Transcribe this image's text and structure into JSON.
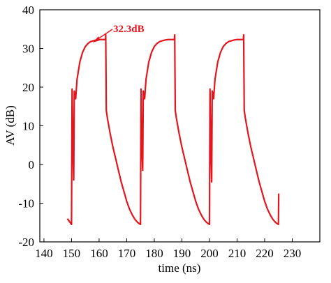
{
  "chart_data": {
    "type": "line",
    "xlabel": "time (ns)",
    "ylabel": "AV (dB)",
    "annotation": "32.3dB",
    "xlim": [
      138.5,
      240
    ],
    "xticks": [
      140,
      150,
      160,
      170,
      180,
      190,
      200,
      210,
      220,
      230
    ],
    "ylim": [
      -20,
      40
    ],
    "yticks": [
      -20,
      -10,
      0,
      10,
      20,
      30,
      40
    ],
    "series": [
      {
        "color": "#e3161d",
        "x": [
          148.5,
          150,
          150.2,
          150.5,
          150.8,
          151,
          151.5,
          152,
          153,
          154,
          155,
          156,
          157,
          158,
          159,
          160,
          162.3,
          162.4,
          162.6,
          163,
          164,
          165,
          166,
          167,
          168,
          169,
          170,
          171,
          172,
          173,
          174,
          175,
          175.2,
          175.5,
          175.8,
          176,
          176.5,
          177,
          178,
          179,
          180,
          181,
          182,
          183,
          184,
          185,
          187.3,
          187.4,
          187.6,
          188,
          189,
          190,
          191,
          192,
          193,
          194,
          195,
          196,
          197,
          198,
          199,
          200,
          200.2,
          200.5,
          200.8,
          201,
          201.5,
          202,
          203,
          204,
          205,
          206,
          207,
          208,
          209,
          210,
          212.3,
          212.4,
          212.6,
          213,
          214,
          215,
          216,
          217,
          218,
          219,
          220,
          221,
          222,
          223,
          224,
          225,
          225.1
        ],
        "values": [
          -14,
          -15.5,
          19.5,
          5,
          -4,
          19,
          17,
          22,
          26.5,
          29,
          30.5,
          31.3,
          31.8,
          32,
          32.2,
          32.3,
          32.3,
          33.5,
          14,
          12,
          8,
          4.5,
          1.5,
          -1.5,
          -4.5,
          -7,
          -9.5,
          -11.5,
          -13,
          -14.2,
          -15,
          -15.5,
          19.5,
          5,
          -1.5,
          19,
          17,
          22,
          26.5,
          29,
          30.5,
          31.3,
          31.8,
          32,
          32.2,
          32.3,
          32.3,
          33.5,
          14,
          12,
          8,
          4.5,
          1.5,
          -1.5,
          -4.5,
          -7,
          -9.5,
          -11.5,
          -13,
          -14.2,
          -15,
          -15.5,
          19.5,
          5,
          -4.5,
          19,
          17,
          22,
          26.5,
          29,
          30.5,
          31.3,
          31.8,
          32,
          32.2,
          32.3,
          32.3,
          33.5,
          14,
          12,
          8,
          4.5,
          1.5,
          -1.5,
          -4.5,
          -7,
          -9.5,
          -11.5,
          -13,
          -14.2,
          -15,
          -15.5,
          -7.5
        ]
      }
    ]
  }
}
